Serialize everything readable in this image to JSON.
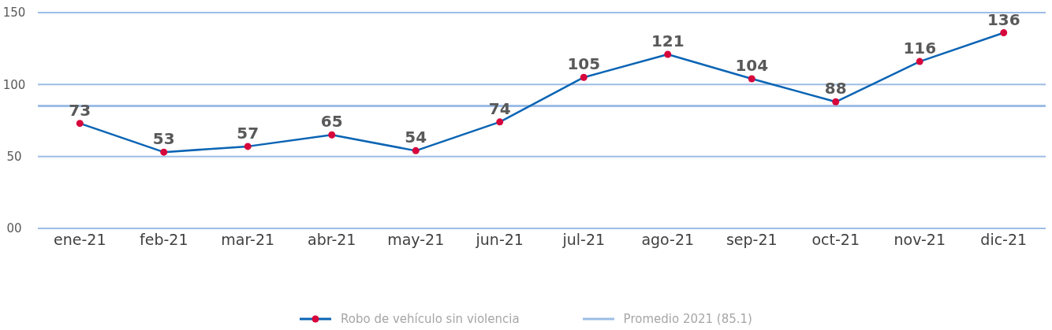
{
  "chart_data": {
    "type": "line",
    "categories": [
      "ene-21",
      "feb-21",
      "mar-21",
      "abr-21",
      "may-21",
      "jun-21",
      "jul-21",
      "ago-21",
      "sep-21",
      "oct-21",
      "nov-21",
      "dic-21"
    ],
    "series": [
      {
        "name": "Robo de vehículo sin violencia",
        "color": "#0a64b4",
        "colors": [
          "#d6063c",
          "#d6063c",
          "#d6063c",
          "#d6063c",
          "#d6063c",
          "#d6063c",
          "#d6063c",
          "#d6063c",
          "#d6063c",
          "#d6063c",
          "#d6063c",
          "#d6063c"
        ],
        "values": [
          73,
          53,
          57,
          65,
          54,
          74,
          105,
          121,
          104,
          88,
          116,
          136
        ]
      }
    ],
    "ylim": [
      0,
      150
    ],
    "yticks": [
      {
        "value": 0,
        "label": "00"
      },
      50,
      100,
      150
    ],
    "grid": "y",
    "marker": "circle",
    "line_style": "solid",
    "data_labels": true,
    "legend": "bottom",
    "ref_lines": [
      {
        "axis": "y",
        "value": 85.1,
        "label": "Promedio 2021 (85.1)",
        "color": "#9dbde6"
      }
    ]
  }
}
